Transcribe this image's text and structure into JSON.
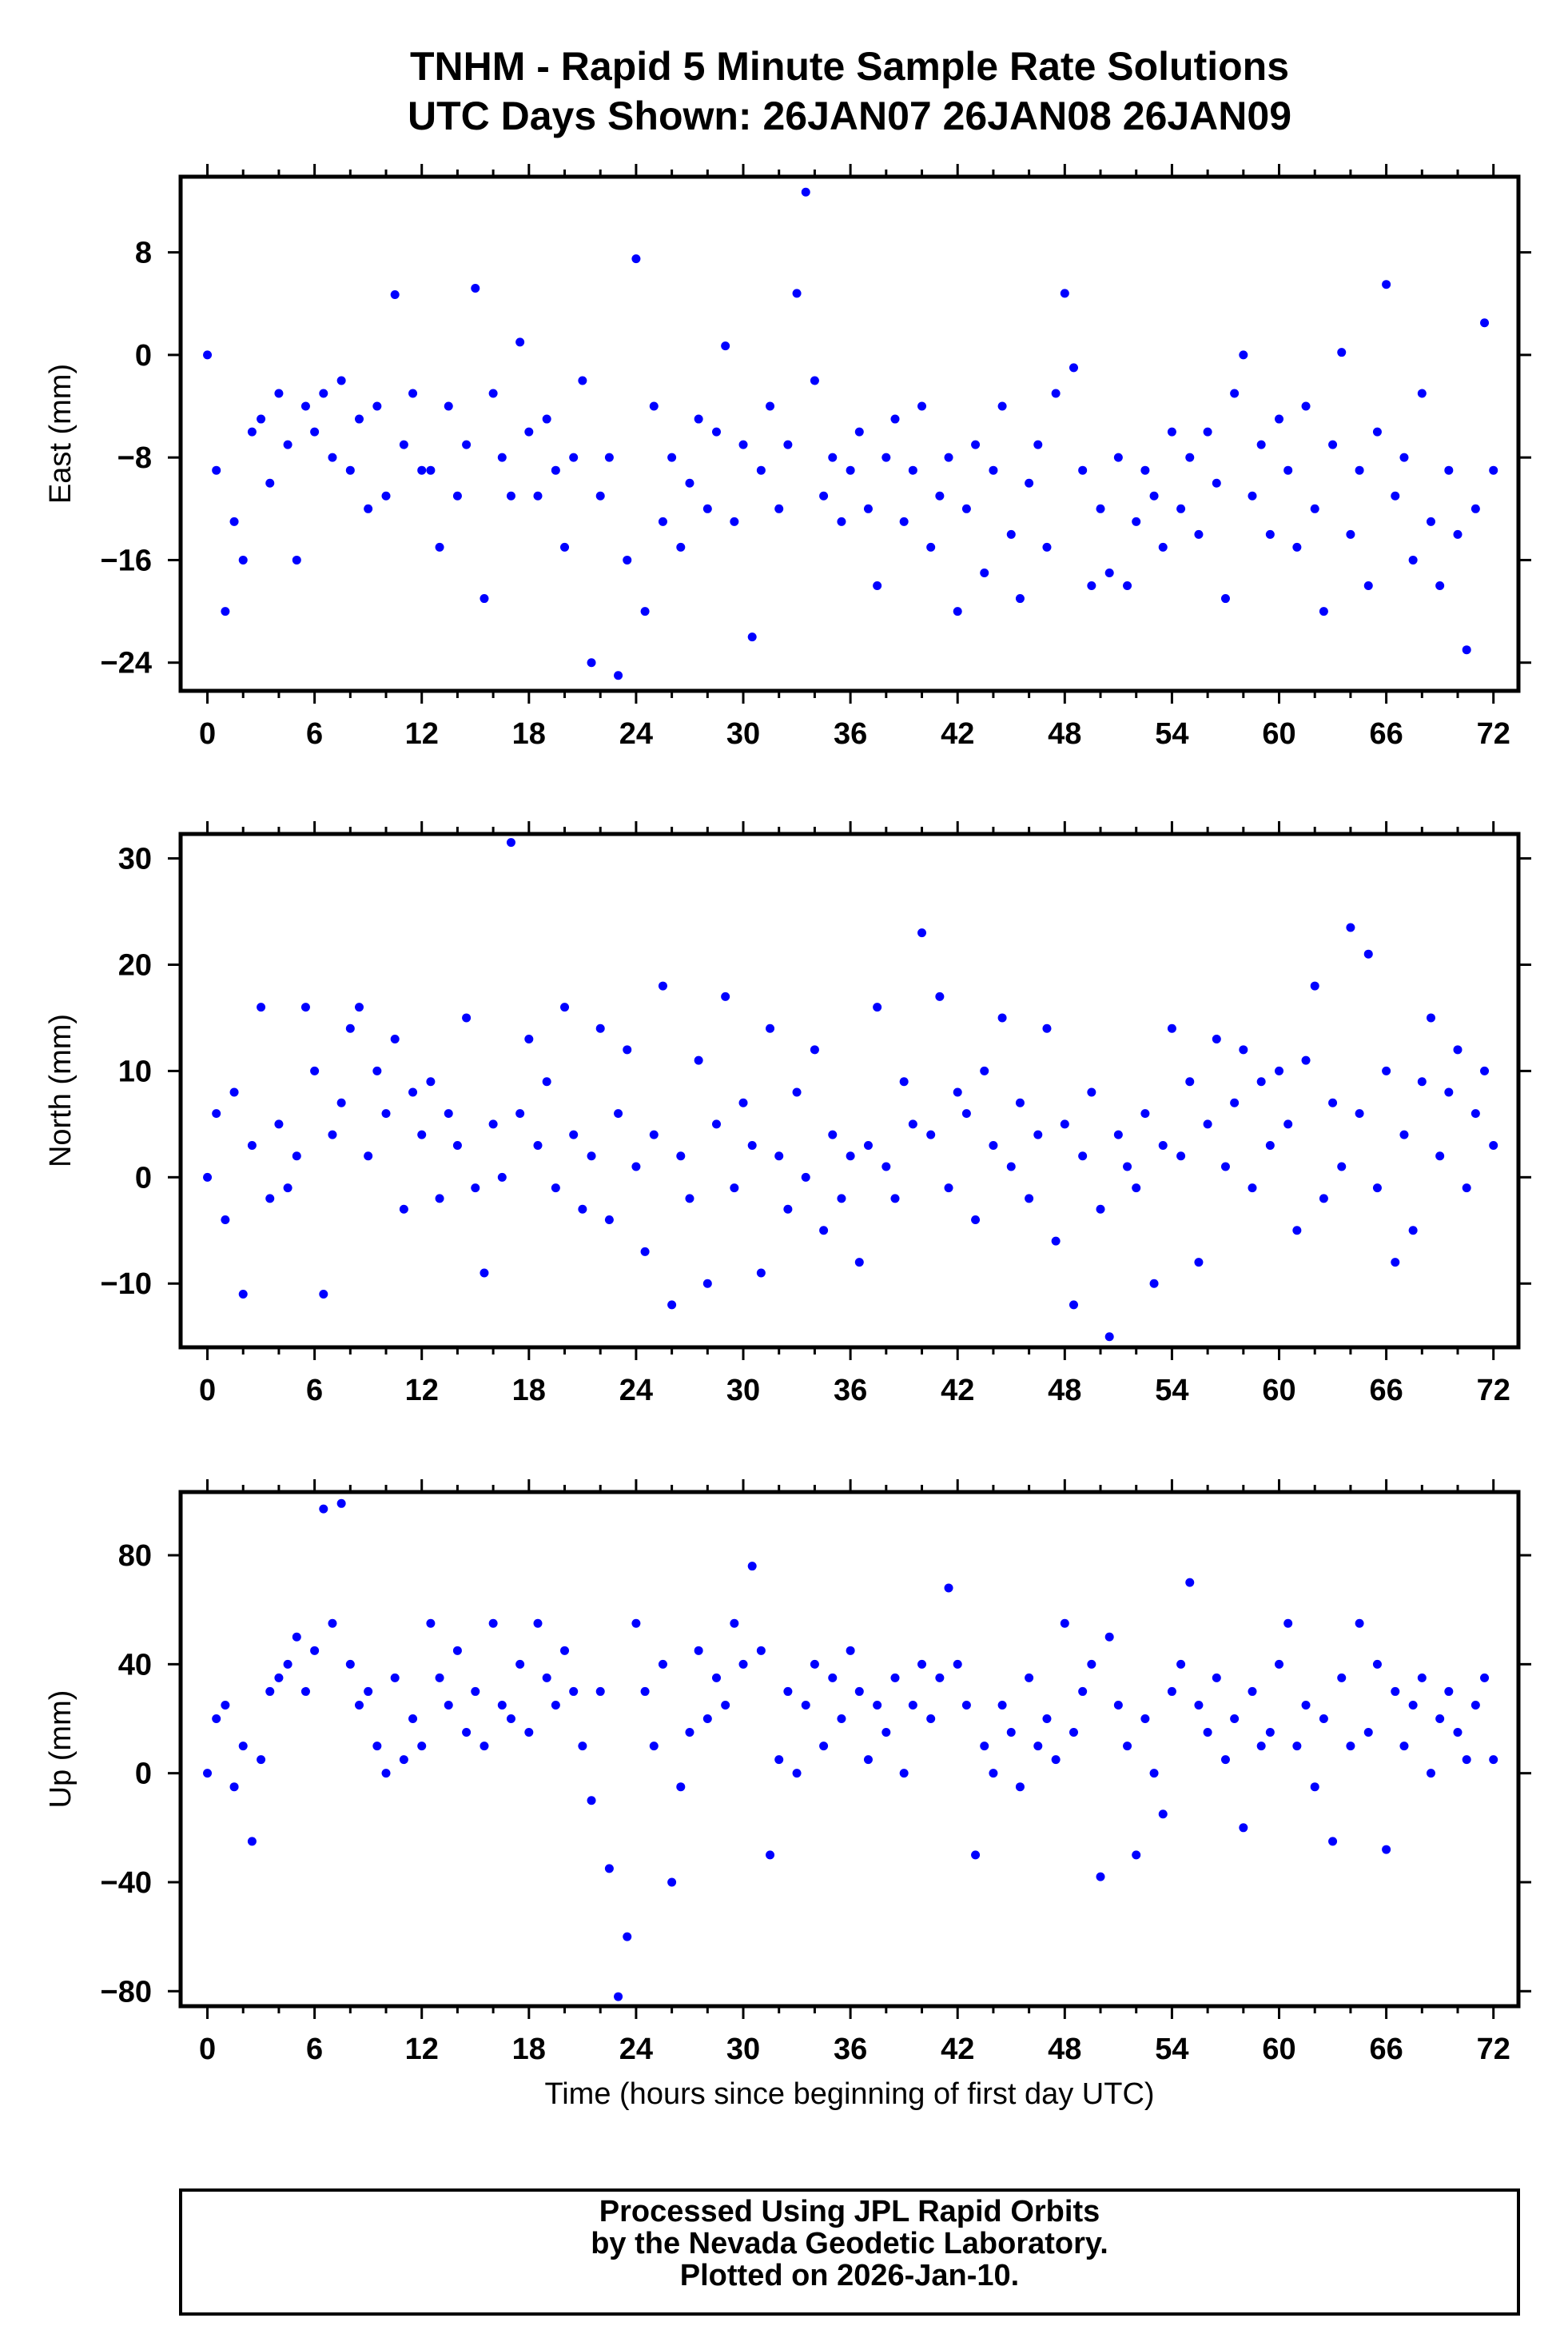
{
  "title": {
    "line1": "TNHM - Rapid 5 Minute Sample Rate Solutions",
    "line2": "UTC Days Shown:  26JAN07 26JAN08 26JAN09"
  },
  "footer": {
    "line1": "Processed Using JPL Rapid Orbits",
    "line2": "by the Nevada Geodetic Laboratory.",
    "line3": "Plotted on 2026-Jan-10."
  },
  "dot_color": "#0000ff",
  "chart_data": [
    {
      "type": "scatter",
      "ylabel": "East (mm)",
      "xlabel": "",
      "xlim": [
        -1.5,
        73.4
      ],
      "ylim": [
        -26.2,
        13.9
      ],
      "xticks": [
        0,
        6,
        12,
        18,
        24,
        30,
        36,
        42,
        48,
        54,
        60,
        66,
        72
      ],
      "yticks": [
        8,
        0,
        -8,
        -16,
        -24
      ],
      "ytick_labels": [
        "8",
        "0",
        "−8",
        "−16",
        "−24"
      ],
      "x_step": 0.5,
      "values": [
        0,
        -9,
        -20,
        -13,
        -16,
        -6,
        -5,
        -10,
        -3,
        -7,
        -16,
        -4,
        -6,
        -3,
        -8,
        -2,
        -9,
        -5,
        -12,
        -4,
        -11,
        4.7,
        -7,
        -3,
        -9,
        -9,
        -15,
        -4,
        -11,
        -7,
        5.2,
        -19,
        -3,
        -8,
        -11,
        1,
        -6,
        -11,
        -5,
        -9,
        -15,
        -8,
        -2,
        -24,
        -11,
        -8,
        -25,
        -16,
        7.5,
        -20,
        -4,
        -13,
        -8,
        -15,
        -10,
        -5,
        -12,
        -6,
        0.7,
        -13,
        -7,
        -22,
        -9,
        -4,
        -12,
        -7,
        4.8,
        12.7,
        -2,
        -11,
        -8,
        -13,
        -9,
        -6,
        -12,
        -18,
        -8,
        -5,
        -13,
        -9,
        -4,
        -15,
        -11,
        -8,
        -20,
        -12,
        -7,
        -17,
        -9,
        -4,
        -14,
        -19,
        -10,
        -7,
        -15,
        -3,
        4.8,
        -1,
        -9,
        -18,
        -12,
        -17,
        -8,
        -18,
        -13,
        -9,
        -11,
        -15,
        -6,
        -12,
        -8,
        -14,
        -6,
        -10,
        -19,
        -3,
        0,
        -11,
        -7,
        -14,
        -5,
        -9,
        -15,
        -4,
        -12,
        -20,
        -7,
        0.2,
        -14,
        -9,
        -18,
        -6,
        5.5,
        -11,
        -8,
        -16,
        -3,
        -13,
        -18,
        -9,
        -14,
        -23,
        -12,
        2.5,
        -9
      ]
    },
    {
      "type": "scatter",
      "ylabel": "North (mm)",
      "xlabel": "",
      "xlim": [
        -1.5,
        73.4
      ],
      "ylim": [
        -16,
        32.3
      ],
      "xticks": [
        0,
        6,
        12,
        18,
        24,
        30,
        36,
        42,
        48,
        54,
        60,
        66,
        72
      ],
      "yticks": [
        30,
        20,
        10,
        0,
        -10
      ],
      "ytick_labels": [
        "30",
        "20",
        "10",
        "0",
        "−10"
      ],
      "x_step": 0.5,
      "values": [
        0,
        6,
        -4,
        8,
        -11,
        3,
        16,
        -2,
        5,
        -1,
        2,
        16,
        10,
        -11,
        4,
        7,
        14,
        16,
        2,
        10,
        6,
        13,
        -3,
        8,
        4,
        9,
        -2,
        6,
        3,
        15,
        -1,
        -9,
        5,
        0,
        31.5,
        6,
        13,
        3,
        9,
        -1,
        16,
        4,
        -3,
        2,
        14,
        -4,
        6,
        12,
        1,
        -7,
        4,
        18,
        -12,
        2,
        -2,
        11,
        -10,
        5,
        17,
        -1,
        7,
        3,
        -9,
        14,
        2,
        -3,
        8,
        0,
        12,
        -5,
        4,
        -2,
        2,
        -8,
        3,
        16,
        1,
        -2,
        9,
        5,
        23,
        4,
        17,
        -1,
        8,
        6,
        -4,
        10,
        3,
        15,
        1,
        7,
        -2,
        4,
        14,
        -6,
        5,
        -12,
        2,
        8,
        -3,
        -15,
        4,
        1,
        -1,
        6,
        -10,
        3,
        14,
        2,
        9,
        -8,
        5,
        13,
        1,
        7,
        12,
        -1,
        9,
        3,
        10,
        5,
        -5,
        11,
        18,
        -2,
        7,
        1,
        23.5,
        6,
        21,
        -1,
        10,
        -8,
        4,
        -5,
        9,
        15,
        2,
        8,
        12,
        -1,
        6,
        10,
        3
      ]
    },
    {
      "type": "scatter",
      "ylabel": "Up (mm)",
      "xlabel": "Time (hours since beginning of first day UTC)",
      "xlim": [
        -1.5,
        73.4
      ],
      "ylim": [
        -85.5,
        103.2
      ],
      "xticks": [
        0,
        6,
        12,
        18,
        24,
        30,
        36,
        42,
        48,
        54,
        60,
        66,
        72
      ],
      "yticks": [
        80,
        40,
        0,
        -40,
        -80
      ],
      "ytick_labels": [
        "80",
        "40",
        "0",
        "−40",
        "−80"
      ],
      "x_step": 0.5,
      "values": [
        0,
        20,
        25,
        -5,
        10,
        -25,
        5,
        30,
        35,
        40,
        50,
        30,
        45,
        97,
        55,
        99,
        40,
        25,
        30,
        10,
        0,
        35,
        5,
        20,
        10,
        55,
        35,
        25,
        45,
        15,
        30,
        10,
        55,
        25,
        20,
        40,
        15,
        55,
        35,
        25,
        45,
        30,
        10,
        -10,
        30,
        -35,
        -82,
        -60,
        55,
        30,
        10,
        40,
        -40,
        -5,
        15,
        45,
        20,
        35,
        25,
        55,
        40,
        76,
        45,
        -30,
        5,
        30,
        0,
        25,
        40,
        10,
        35,
        20,
        45,
        30,
        5,
        25,
        15,
        35,
        0,
        25,
        40,
        20,
        35,
        68,
        40,
        25,
        -30,
        10,
        0,
        25,
        15,
        -5,
        35,
        10,
        20,
        5,
        55,
        15,
        30,
        40,
        -38,
        50,
        25,
        10,
        -30,
        20,
        0,
        -15,
        30,
        40,
        70,
        25,
        15,
        35,
        5,
        20,
        -20,
        30,
        10,
        15,
        40,
        55,
        10,
        25,
        -5,
        20,
        -25,
        35,
        10,
        55,
        15,
        40,
        -28,
        30,
        10,
        25,
        35,
        0,
        20,
        30,
        15,
        5,
        25,
        35,
        5
      ]
    }
  ]
}
